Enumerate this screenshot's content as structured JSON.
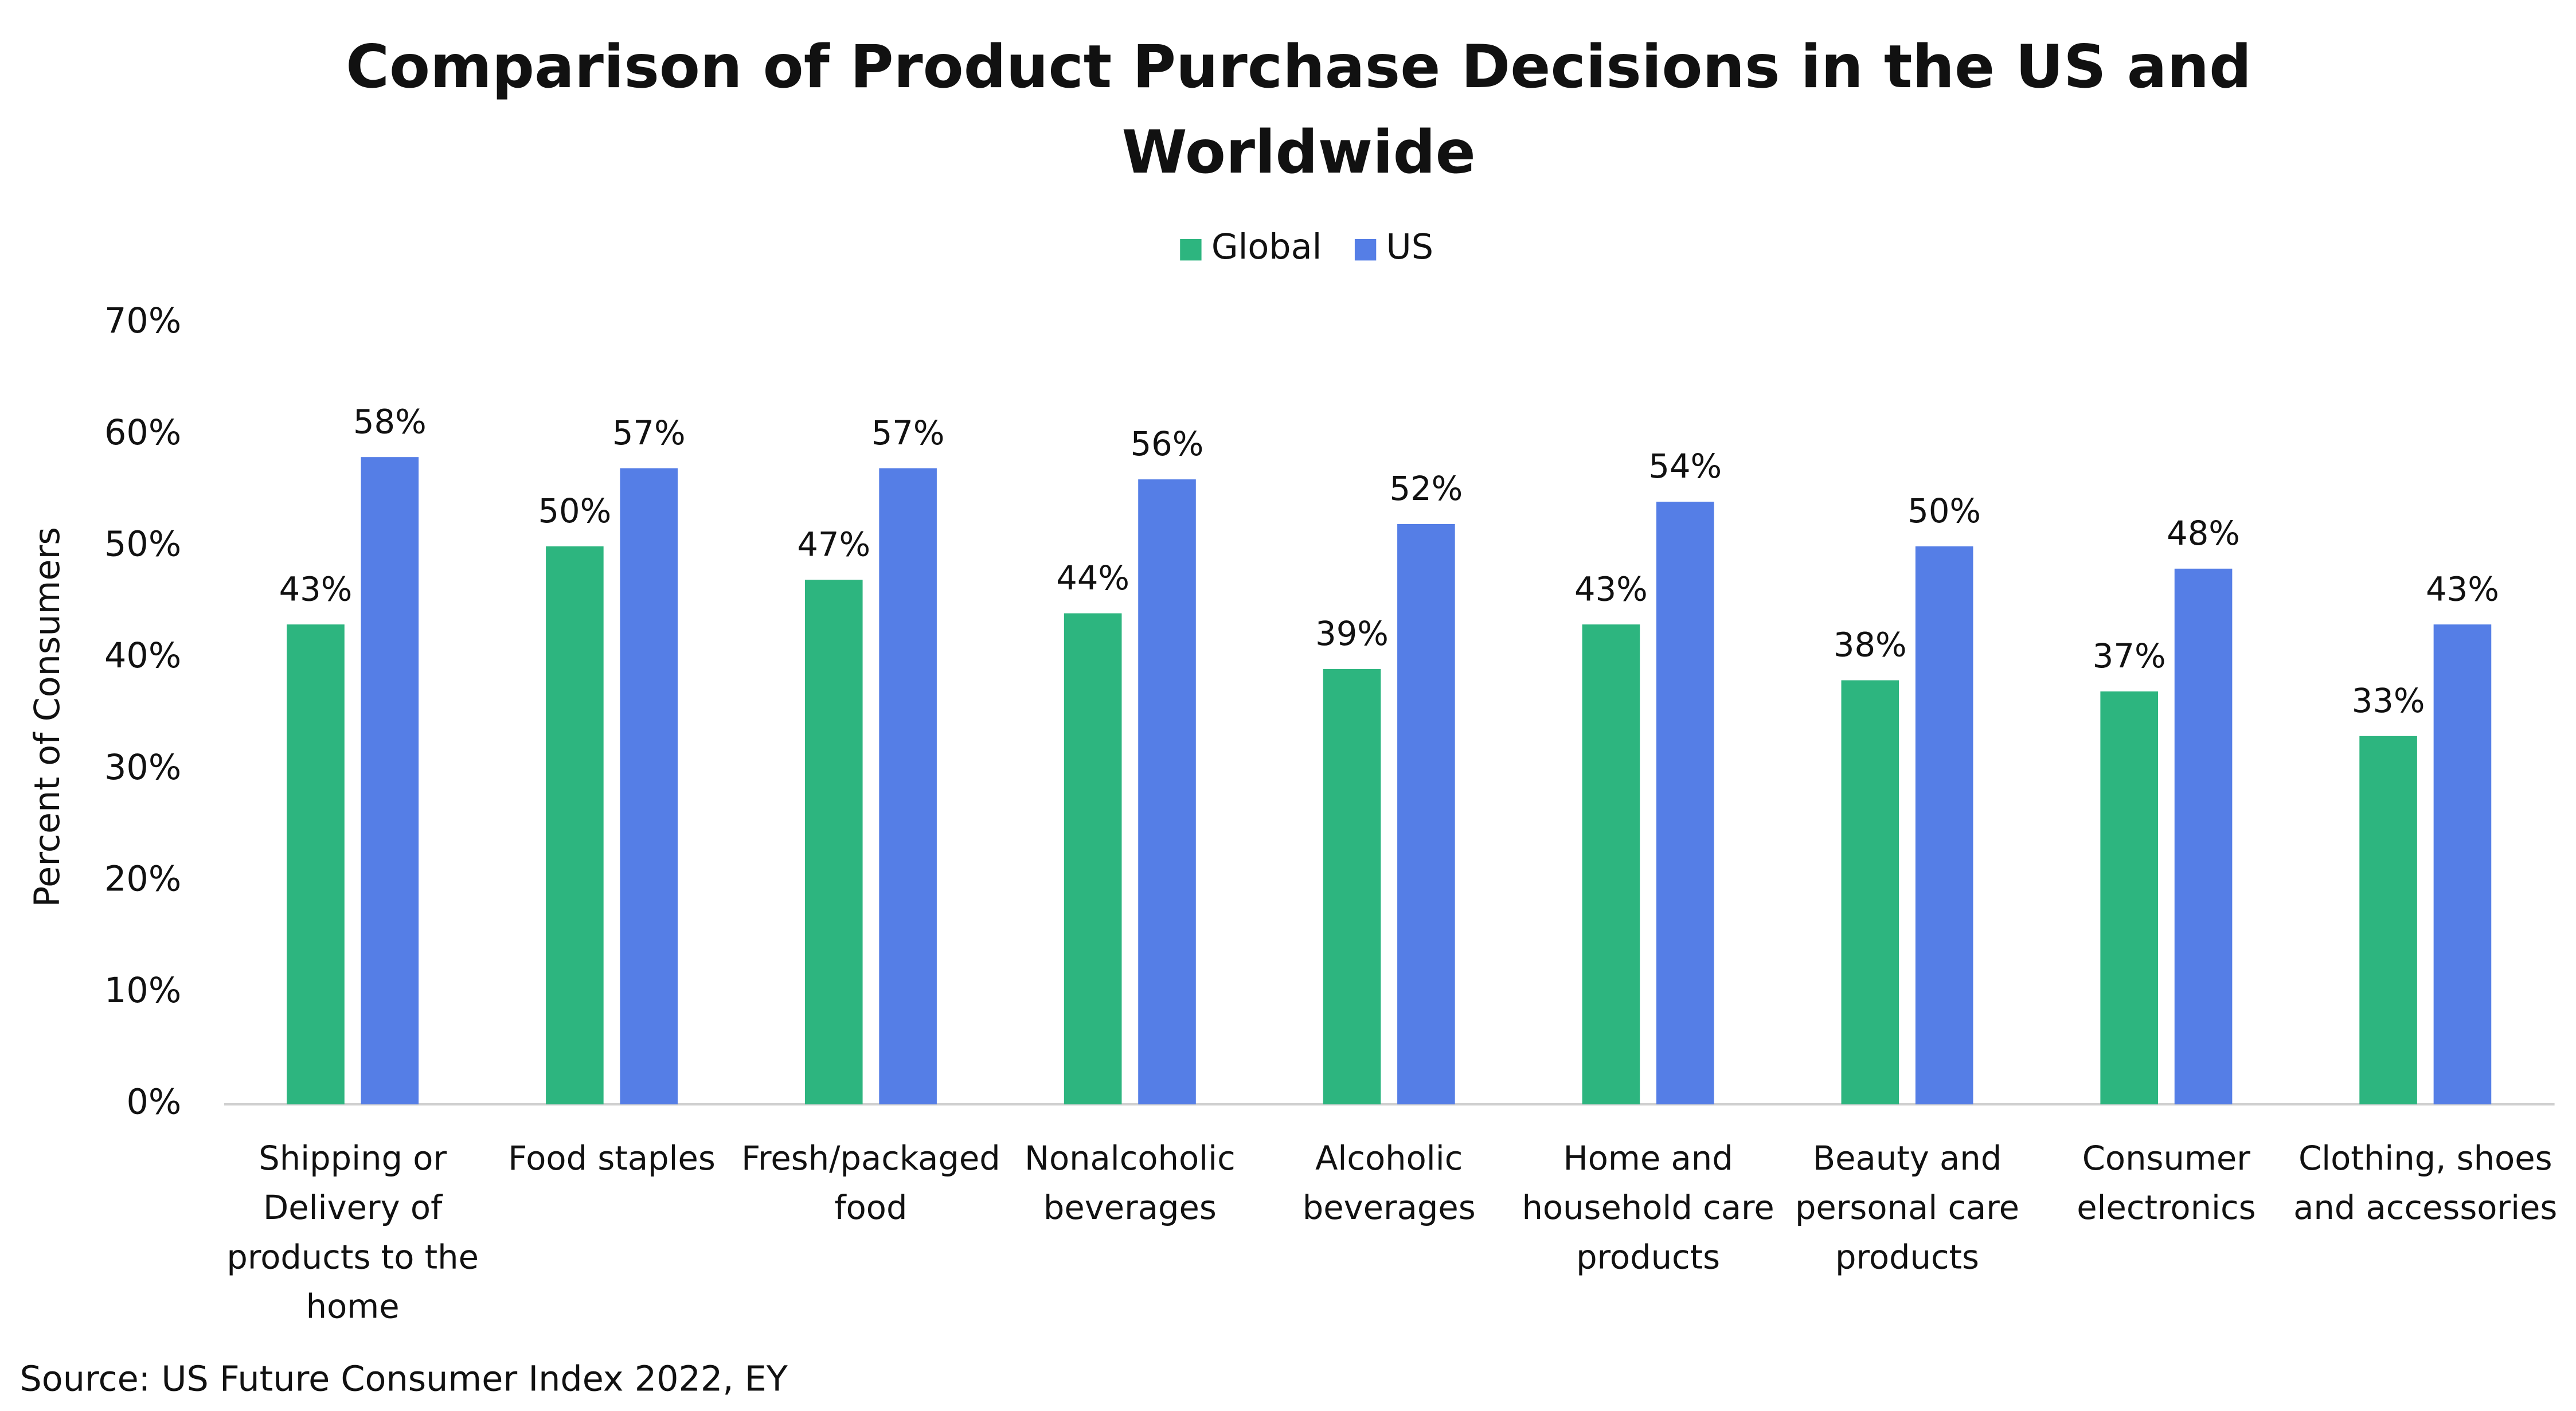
{
  "chart_data": {
    "type": "bar",
    "title": "Comparison of Product Purchase Decisions in the US and Worldwide",
    "y_axis_label": "Percent of Consumers",
    "source": "Source: US Future Consumer Index 2022, EY",
    "categories": [
      "Shipping or Delivery of products to the home",
      "Food staples",
      "Fresh/packaged food",
      "Nonalcoholic beverages",
      "Alcoholic beverages",
      "Home and household care products",
      "Beauty and personal care products",
      "Consumer electronics",
      "Clothing, shoes and accessories"
    ],
    "series": [
      {
        "name": "Global",
        "color": "#2db57f",
        "values": [
          43,
          50,
          47,
          44,
          39,
          43,
          38,
          37,
          33
        ],
        "value_labels": [
          "43%",
          "50%",
          "47%",
          "44%",
          "39%",
          "43%",
          "38%",
          "37%",
          "33%"
        ]
      },
      {
        "name": "US",
        "color": "#557ee6",
        "values": [
          58,
          57,
          57,
          56,
          52,
          54,
          50,
          48,
          43
        ],
        "value_labels": [
          "58%",
          "57%",
          "57%",
          "56%",
          "52%",
          "54%",
          "50%",
          "48%",
          "43%"
        ]
      }
    ],
    "ylim": [
      0,
      70
    ],
    "yticks": [
      {
        "value": 0,
        "label": "0%"
      },
      {
        "value": 10,
        "label": "10%"
      },
      {
        "value": 20,
        "label": "20%"
      },
      {
        "value": 30,
        "label": "30%"
      },
      {
        "value": 40,
        "label": "40%"
      },
      {
        "value": 50,
        "label": "50%"
      },
      {
        "value": 60,
        "label": "60%"
      },
      {
        "value": 70,
        "label": "70%"
      }
    ],
    "legend": "top",
    "grid": false
  }
}
